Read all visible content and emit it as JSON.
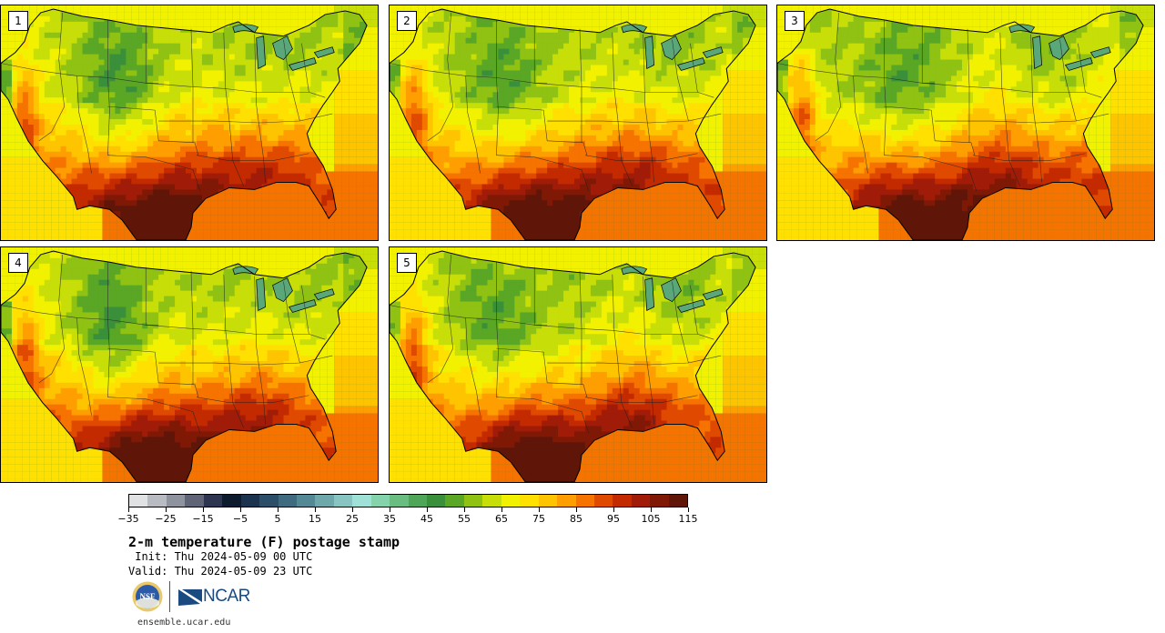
{
  "panels": [
    {
      "label": "1",
      "variant": 0
    },
    {
      "label": "2",
      "variant": 1
    },
    {
      "label": "3",
      "variant": 2
    },
    {
      "label": "4",
      "variant": 3
    },
    {
      "label": "5",
      "variant": 4
    }
  ],
  "colorbar": {
    "colors": [
      "#e0e2e4",
      "#b8bcc2",
      "#8e939f",
      "#5f6577",
      "#2d3550",
      "#0e1a2e",
      "#1c3350",
      "#2d4e68",
      "#3f6a7f",
      "#558895",
      "#6fa8ab",
      "#88c5c2",
      "#9fe0d7",
      "#85d3ab",
      "#69bd80",
      "#4fa659",
      "#3a8f3a",
      "#5aa625",
      "#8fc213",
      "#c7de08",
      "#f2f200",
      "#ffe000",
      "#ffc400",
      "#ff9e00",
      "#f67300",
      "#e04a00",
      "#c42a00",
      "#a01c08",
      "#801806",
      "#5f1608"
    ],
    "tick_labels": [
      "-35",
      "-25",
      "-15",
      "-5",
      "5",
      "15",
      "25",
      "35",
      "45",
      "55",
      "65",
      "75",
      "85",
      "95",
      "105",
      "115"
    ]
  },
  "title": "2-m temperature (F) postage stamp",
  "init_text": " Init: Thu 2024-05-09 00 UTC",
  "valid_text": "Valid: Thu 2024-05-09 23 UTC",
  "logos": {
    "nsf": "NSF",
    "ncar": "NCAR"
  },
  "site": "ensemble.ucar.edu"
}
